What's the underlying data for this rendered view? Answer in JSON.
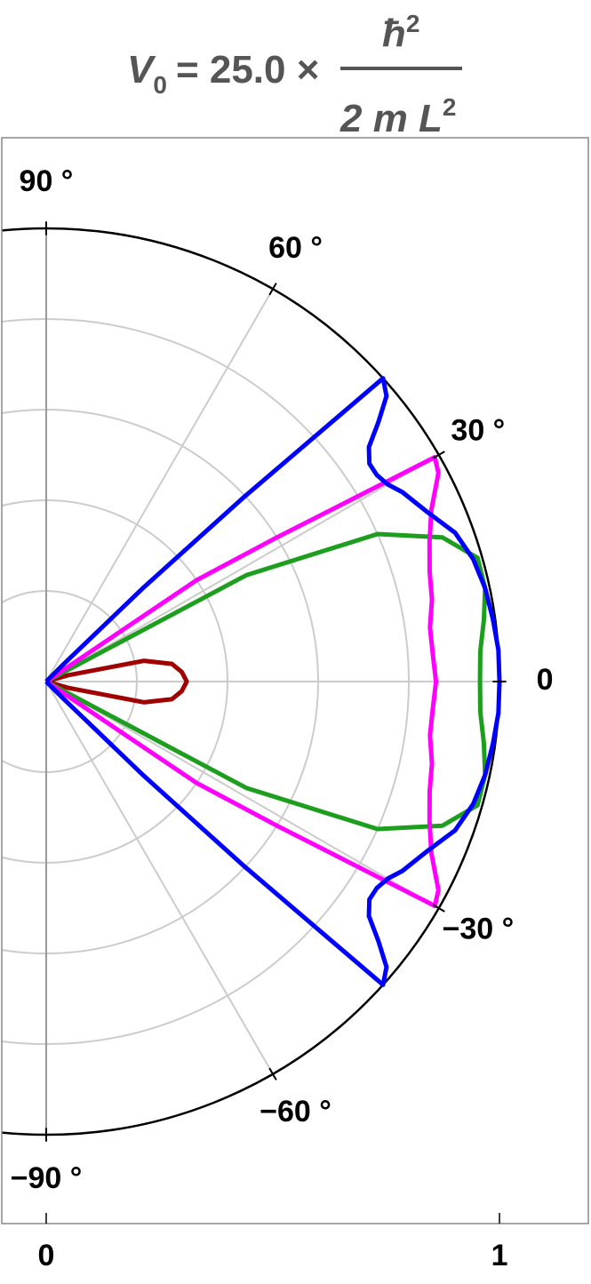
{
  "chart_data": {
    "type": "polar",
    "title": {
      "symbol": "V",
      "subscript": "0",
      "middle": "= 25.0 ×",
      "numerator": "ħ",
      "numerator_power": "2",
      "denominator": "2 m L",
      "denominator_power": "2"
    },
    "x": [
      -46,
      -45,
      -44,
      -43,
      -42,
      -40,
      -38,
      -36,
      -34,
      -32,
      -30,
      -28,
      -24,
      -20,
      -16,
      -12,
      -8,
      -4,
      0,
      4,
      8,
      12,
      16,
      20,
      24,
      28,
      30,
      32,
      34,
      36,
      38,
      40,
      42,
      43,
      44,
      45,
      46
    ],
    "series": [
      {
        "color": "#a00000",
        "values": [
          0,
          0,
          0,
          0,
          0,
          0,
          0,
          0,
          0,
          0,
          0,
          0,
          0,
          0,
          0.05,
          0.22,
          0.28,
          0.3,
          0.31,
          0.3,
          0.28,
          0.22,
          0.05,
          0,
          0,
          0,
          0,
          0,
          0,
          0,
          0,
          0,
          0,
          0,
          0,
          0,
          0
        ]
      },
      {
        "color": "#1e9e1e",
        "values": [
          0,
          0,
          0,
          0,
          0,
          0,
          0,
          0,
          0,
          0,
          0,
          0.5,
          0.8,
          0.93,
          0.99,
          0.99,
          0.975,
          0.96,
          0.957,
          0.96,
          0.975,
          0.99,
          0.99,
          0.93,
          0.8,
          0.5,
          0,
          0,
          0,
          0,
          0,
          0,
          0,
          0,
          0,
          0,
          0
        ]
      },
      {
        "color": "#ff00ff",
        "values": [
          0,
          0,
          0,
          0,
          0,
          0,
          0,
          0,
          0.4,
          0.6,
          0.99,
          0.98,
          0.93,
          0.9,
          0.88,
          0.87,
          0.855,
          0.855,
          0.86,
          0.855,
          0.855,
          0.87,
          0.88,
          0.9,
          0.93,
          0.98,
          0.99,
          0.6,
          0.4,
          0,
          0,
          0,
          0,
          0,
          0,
          0,
          0
        ]
      },
      {
        "color": "#0000ff",
        "values": [
          0,
          0.05,
          0.3,
          0.6,
          1.0,
          0.98,
          0.93,
          0.88,
          0.86,
          0.86,
          0.87,
          0.89,
          0.92,
          0.96,
          0.98,
          0.99,
          0.995,
          1.0,
          1.0,
          1.0,
          0.995,
          0.99,
          0.98,
          0.96,
          0.92,
          0.89,
          0.87,
          0.86,
          0.86,
          0.88,
          0.93,
          0.98,
          1.0,
          0.6,
          0.3,
          0.05,
          0
        ]
      }
    ],
    "thetaticks": [
      {
        "value": 90,
        "label": "90 °"
      },
      {
        "value": 60,
        "label": "60 °"
      },
      {
        "value": 30,
        "label": "30 °"
      },
      0,
      {
        "value": -30,
        "label": "−30 °"
      },
      {
        "value": -60,
        "label": "−60 °"
      },
      {
        "value": -90,
        "label": "−90 °"
      }
    ],
    "rgrid": [
      0.2,
      0.4,
      0.6,
      0.8,
      1
    ],
    "xlim": [
      -0.098,
      1.196
    ],
    "xticks": [
      0,
      1
    ],
    "grid": true
  }
}
